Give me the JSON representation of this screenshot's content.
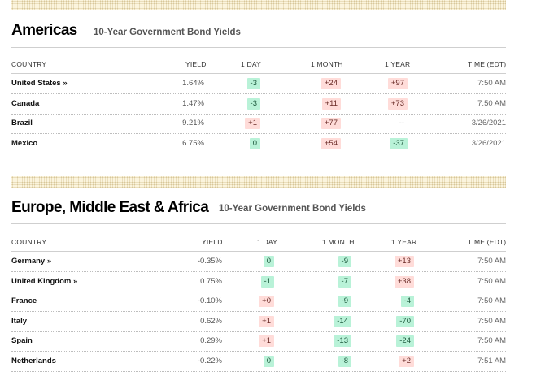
{
  "americas": {
    "title": "Americas",
    "subtitle": "10-Year Government Bond Yields",
    "headers": {
      "country": "COUNTRY",
      "yield": "YIELD",
      "day": "1 DAY",
      "month": "1 MONTH",
      "year": "1 YEAR",
      "time": "TIME (EDT)"
    },
    "rows": [
      {
        "country": "United States »",
        "yield": "1.64%",
        "day": "-3",
        "month": "+24",
        "year": "+97",
        "time": "7:50 AM"
      },
      {
        "country": "Canada",
        "yield": "1.47%",
        "day": "-3",
        "month": "+11",
        "year": "+73",
        "time": "7:50 AM"
      },
      {
        "country": "Brazil",
        "yield": "9.21%",
        "day": "+1",
        "month": "+77",
        "year": "--",
        "time": "3/26/2021"
      },
      {
        "country": "Mexico",
        "yield": "6.75%",
        "day": "0",
        "month": "+54",
        "year": "-37",
        "time": "3/26/2021"
      }
    ]
  },
  "emea": {
    "title": "Europe, Middle East & Africa",
    "subtitle": "10-Year Government Bond Yields",
    "headers": {
      "country": "COUNTRY",
      "yield": "YIELD",
      "day": "1 DAY",
      "month": "1 MONTH",
      "year": "1 YEAR",
      "time": "TIME (EDT)"
    },
    "rows": [
      {
        "country": "Germany »",
        "yield": "-0.35%",
        "day": "0",
        "month": "-9",
        "year": "+13",
        "time": "7:50 AM"
      },
      {
        "country": "United Kingdom »",
        "yield": "0.75%",
        "day": "-1",
        "month": "-7",
        "year": "+38",
        "time": "7:50 AM"
      },
      {
        "country": "France",
        "yield": "-0.10%",
        "day": "+0",
        "month": "-9",
        "year": "-4",
        "time": "7:50 AM"
      },
      {
        "country": "Italy",
        "yield": "0.62%",
        "day": "+1",
        "month": "-14",
        "year": "-70",
        "time": "7:50 AM"
      },
      {
        "country": "Spain",
        "yield": "0.29%",
        "day": "+1",
        "month": "-13",
        "year": "-24",
        "time": "7:50 AM"
      },
      {
        "country": "Netherlands",
        "yield": "-0.22%",
        "day": "0",
        "month": "-8",
        "year": "+2",
        "time": "7:51 AM"
      }
    ]
  },
  "colors": {
    "positive_bg": "#ffdcd9",
    "negative_bg": "#b9f2d8",
    "banner": "#fbf4dd"
  }
}
